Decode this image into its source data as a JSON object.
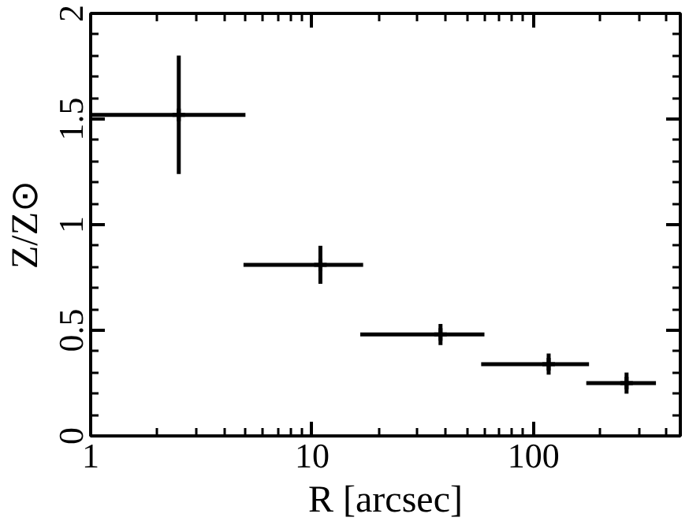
{
  "chart_data": {
    "type": "scatter",
    "marker": "cross",
    "log": "x",
    "grid": false,
    "xlabel": "R [arcsec]",
    "ylabel": "Z/Z⊙",
    "x": [
      2.5,
      10.9,
      38,
      117,
      263
    ],
    "values": [
      1.52,
      0.81,
      0.48,
      0.34,
      0.25
    ],
    "errors": [
      0.28,
      0.09,
      0.05,
      0.05,
      0.05
    ],
    "xerrors": [
      [
        1.0,
        5.0
      ],
      [
        4.9,
        17
      ],
      [
        16.5,
        60
      ],
      [
        58,
        178
      ],
      [
        173,
        357
      ]
    ],
    "color": "#000000",
    "xlim": [
      1,
      460
    ],
    "ylim": [
      0,
      2
    ],
    "xticks": [
      1,
      10,
      100
    ],
    "yticks": [
      0,
      0.5,
      1,
      1.5,
      2
    ]
  }
}
